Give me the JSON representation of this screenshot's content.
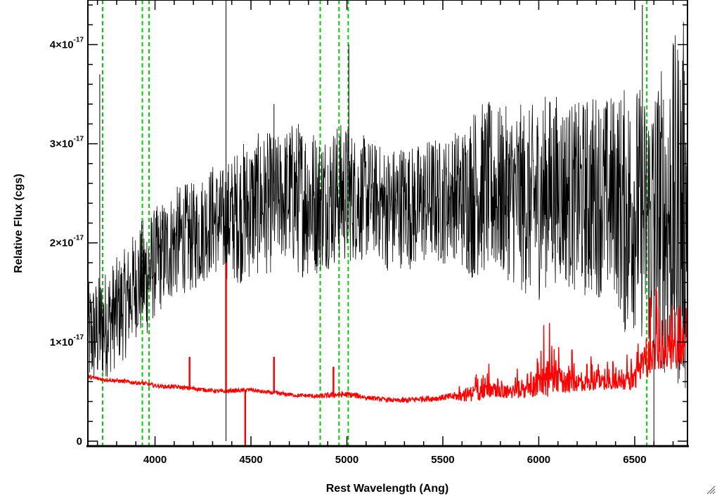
{
  "chart_data": {
    "type": "line",
    "title": "",
    "xlabel": "Rest Wavelength (Ang)",
    "ylabel": "Relative Flux (cgs)",
    "xlim": [
      3650,
      6775
    ],
    "ylim": [
      -5e-19,
      4.45e-17
    ],
    "x_ticks": [
      4000,
      4500,
      5000,
      5500,
      6000,
      6500
    ],
    "y_ticks": [
      {
        "value": 0,
        "mantissa": "0",
        "exponent": ""
      },
      {
        "value": 1e-17,
        "mantissa": "1×10",
        "exponent": "-17"
      },
      {
        "value": 2e-17,
        "mantissa": "2×10",
        "exponent": "-17"
      },
      {
        "value": 3e-17,
        "mantissa": "3×10",
        "exponent": "-17"
      },
      {
        "value": 4e-17,
        "mantissa": "4×10",
        "exponent": "-17"
      }
    ],
    "x_minor_step": 100,
    "y_minor_step": 2e-18,
    "grid": false,
    "reference_lines": [
      {
        "x": 3727,
        "color": "#00d000"
      },
      {
        "x": 3934,
        "color": "#00d000"
      },
      {
        "x": 3969,
        "color": "#00d000"
      },
      {
        "x": 4861,
        "color": "#00d000"
      },
      {
        "x": 4959,
        "color": "#00d000"
      },
      {
        "x": 5007,
        "color": "#00d000"
      },
      {
        "x": 6563,
        "color": "#00d000"
      }
    ],
    "series": [
      {
        "color": "#000000",
        "values_unit": "1e-17 erg/s/cm2/A",
        "x": [
          3650,
          3700,
          3750,
          3800,
          3850,
          3900,
          3950,
          4000,
          4050,
          4100,
          4150,
          4200,
          4250,
          4300,
          4350,
          4400,
          4450,
          4500,
          4550,
          4600,
          4650,
          4700,
          4750,
          4800,
          4850,
          4900,
          4950,
          5000,
          5050,
          5100,
          5150,
          5200,
          5250,
          5300,
          5350,
          5400,
          5450,
          5500,
          5550,
          5600,
          5650,
          5700,
          5750,
          5800,
          5850,
          5900,
          5950,
          6000,
          6050,
          6100,
          6150,
          6200,
          6250,
          6300,
          6350,
          6400,
          6450,
          6500,
          6550,
          6600,
          6650,
          6700,
          6750,
          6775
        ],
        "values": [
          1.05,
          1.1,
          1.2,
          1.3,
          1.4,
          1.6,
          1.65,
          1.8,
          1.9,
          2.0,
          2.05,
          2.05,
          2.15,
          2.25,
          2.2,
          2.25,
          2.3,
          2.35,
          2.4,
          2.4,
          2.45,
          2.5,
          2.45,
          2.45,
          2.4,
          2.45,
          2.5,
          2.5,
          2.45,
          2.45,
          2.45,
          2.35,
          2.35,
          2.4,
          2.35,
          2.4,
          2.45,
          2.4,
          2.5,
          2.45,
          2.5,
          2.55,
          2.55,
          2.5,
          2.5,
          2.45,
          2.4,
          2.45,
          2.55,
          2.55,
          2.5,
          2.45,
          2.45,
          2.5,
          2.45,
          2.5,
          2.3,
          2.4,
          2.25,
          2.25,
          2.25,
          2.3,
          2.35,
          2.35
        ],
        "noise": [
          0.35,
          0.35,
          0.35,
          0.35,
          0.35,
          0.35,
          0.4,
          0.35,
          0.35,
          0.35,
          0.35,
          0.35,
          0.35,
          0.35,
          0.35,
          0.4,
          0.45,
          0.45,
          0.45,
          0.45,
          0.4,
          0.45,
          0.5,
          0.5,
          0.45,
          0.45,
          0.45,
          0.45,
          0.4,
          0.4,
          0.35,
          0.4,
          0.4,
          0.4,
          0.4,
          0.4,
          0.4,
          0.4,
          0.4,
          0.45,
          0.55,
          0.55,
          0.55,
          0.55,
          0.55,
          0.6,
          0.6,
          0.65,
          0.6,
          0.6,
          0.6,
          0.6,
          0.65,
          0.65,
          0.65,
          0.65,
          0.8,
          0.8,
          0.8,
          0.9,
          1.0,
          1.1,
          1.2,
          1.2
        ]
      },
      {
        "color": "#ff0000",
        "values_unit": "1e-17 erg/s/cm2/A",
        "x": [
          3650,
          3700,
          3750,
          3800,
          3850,
          3900,
          3950,
          4000,
          4050,
          4100,
          4150,
          4200,
          4250,
          4300,
          4350,
          4400,
          4450,
          4500,
          4550,
          4600,
          4650,
          4700,
          4750,
          4800,
          4850,
          4900,
          4950,
          5000,
          5050,
          5100,
          5150,
          5200,
          5250,
          5300,
          5350,
          5400,
          5450,
          5500,
          5550,
          5600,
          5650,
          5700,
          5750,
          5800,
          5850,
          5900,
          5950,
          6000,
          6050,
          6100,
          6150,
          6200,
          6250,
          6300,
          6350,
          6400,
          6450,
          6500,
          6550,
          6600,
          6650,
          6700,
          6750,
          6775
        ],
        "values": [
          0.65,
          0.63,
          0.62,
          0.61,
          0.6,
          0.59,
          0.58,
          0.56,
          0.55,
          0.55,
          0.54,
          0.53,
          0.52,
          0.51,
          0.5,
          0.51,
          0.51,
          0.52,
          0.5,
          0.49,
          0.48,
          0.47,
          0.46,
          0.46,
          0.45,
          0.46,
          0.47,
          0.47,
          0.46,
          0.44,
          0.43,
          0.42,
          0.41,
          0.41,
          0.42,
          0.43,
          0.43,
          0.44,
          0.45,
          0.46,
          0.48,
          0.5,
          0.51,
          0.5,
          0.5,
          0.5,
          0.52,
          0.58,
          0.6,
          0.6,
          0.6,
          0.6,
          0.58,
          0.59,
          0.6,
          0.6,
          0.6,
          0.62,
          0.78,
          0.9,
          0.9,
          0.88,
          0.9,
          1.05
        ],
        "noise": [
          0.02,
          0.02,
          0.02,
          0.02,
          0.02,
          0.02,
          0.02,
          0.02,
          0.02,
          0.02,
          0.02,
          0.02,
          0.02,
          0.02,
          0.02,
          0.02,
          0.02,
          0.02,
          0.02,
          0.02,
          0.02,
          0.02,
          0.02,
          0.02,
          0.02,
          0.03,
          0.03,
          0.03,
          0.03,
          0.02,
          0.02,
          0.02,
          0.02,
          0.03,
          0.03,
          0.03,
          0.03,
          0.03,
          0.04,
          0.06,
          0.08,
          0.08,
          0.08,
          0.07,
          0.07,
          0.07,
          0.08,
          0.15,
          0.15,
          0.15,
          0.12,
          0.1,
          0.08,
          0.08,
          0.08,
          0.08,
          0.08,
          0.12,
          0.18,
          0.18,
          0.18,
          0.18,
          0.12,
          0.12
        ]
      }
    ],
    "spikes": [
      {
        "series": 0,
        "x": 3712,
        "to": 3.7
      },
      {
        "series": 0,
        "x": 4370,
        "to": 4.5
      },
      {
        "series": 0,
        "x": 4370,
        "to": 0.0
      },
      {
        "series": 0,
        "x": 4620,
        "to": 3.4
      },
      {
        "series": 0,
        "x": 5010,
        "to": 4.0
      },
      {
        "series": 0,
        "x": 6540,
        "to": 4.4
      },
      {
        "series": 0,
        "x": 6600,
        "to": 0.0
      },
      {
        "series": 1,
        "x": 4370,
        "to": 1.8
      },
      {
        "series": 1,
        "x": 4470,
        "to": -0.05
      },
      {
        "series": 1,
        "x": 4180,
        "to": 0.85
      },
      {
        "series": 1,
        "x": 4620,
        "to": 0.85
      },
      {
        "series": 1,
        "x": 4930,
        "to": 0.75
      },
      {
        "series": 1,
        "x": 6580,
        "to": 1.45
      }
    ]
  },
  "window": {
    "grip_icon": "resize-grip-icon"
  }
}
